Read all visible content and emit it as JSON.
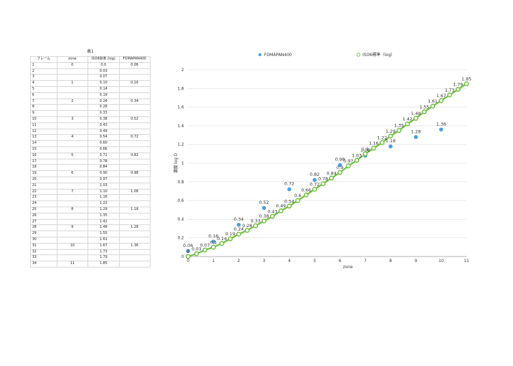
{
  "table": {
    "title": "表1",
    "headers": [
      "フレーム",
      "zone",
      "ISO6標準 (log)",
      "FOMAPAN400"
    ],
    "rows": [
      [
        "1",
        "0",
        "0.0",
        "0.06"
      ],
      [
        "2",
        "",
        "0.03",
        ""
      ],
      [
        "3",
        "",
        "0.07",
        ""
      ],
      [
        "4",
        "1",
        "0.10",
        "0.16"
      ],
      [
        "5",
        "",
        "0.14",
        ""
      ],
      [
        "6",
        "",
        "0.19",
        ""
      ],
      [
        "7",
        "2",
        "0.24",
        "0.34"
      ],
      [
        "8",
        "",
        "0.28",
        ""
      ],
      [
        "9",
        "",
        "0.33",
        ""
      ],
      [
        "10",
        "3",
        "0.38",
        "0.52"
      ],
      [
        "11",
        "",
        "0.43",
        ""
      ],
      [
        "12",
        "",
        "0.49",
        ""
      ],
      [
        "13",
        "4",
        "0.54",
        "0.72"
      ],
      [
        "14",
        "",
        "0.60",
        ""
      ],
      [
        "15",
        "",
        "0.66",
        ""
      ],
      [
        "16",
        "5",
        "0.72",
        "0.82"
      ],
      [
        "17",
        "",
        "0.78",
        ""
      ],
      [
        "18",
        "",
        "0.84",
        ""
      ],
      [
        "19",
        "6",
        "0.90",
        "0.98"
      ],
      [
        "20",
        "",
        "0.97",
        ""
      ],
      [
        "21",
        "",
        "1.03",
        ""
      ],
      [
        "22",
        "7",
        "1.10",
        "1.08"
      ],
      [
        "23",
        "",
        "1.16",
        ""
      ],
      [
        "24",
        "",
        "1.22",
        ""
      ],
      [
        "25",
        "8",
        "1.29",
        "1.18"
      ],
      [
        "26",
        "",
        "1.35",
        ""
      ],
      [
        "27",
        "",
        "1.42",
        ""
      ],
      [
        "28",
        "9",
        "1.48",
        "1.28"
      ],
      [
        "29",
        "",
        "1.55",
        ""
      ],
      [
        "30",
        "",
        "1.61",
        ""
      ],
      [
        "31",
        "10",
        "1.67",
        "1.36"
      ],
      [
        "32",
        "",
        "1.73",
        ""
      ],
      [
        "33",
        "",
        "1.79",
        ""
      ],
      [
        "34",
        "11",
        "1.85",
        ""
      ]
    ]
  },
  "chart_data": {
    "type": "scatter",
    "xlabel": "zone",
    "ylabel": "濃度 log D",
    "xlim": [
      0,
      11
    ],
    "ylim": [
      0,
      2
    ],
    "xticks": [
      0,
      1,
      2,
      3,
      4,
      5,
      6,
      7,
      8,
      9,
      10,
      11
    ],
    "yticks": [
      0,
      0.2,
      0.4,
      0.6,
      0.8,
      1,
      1.2,
      1.4,
      1.6,
      1.8,
      2
    ],
    "ytick_labels": [
      "0",
      "0.2",
      "0.4",
      "0.6",
      "0.8",
      "1",
      "1.2",
      "1.4",
      "1.6",
      "1.8",
      "2"
    ],
    "grid": true,
    "legend_position": "top",
    "series": [
      {
        "name": "FOMAPAN400",
        "color": "#4a9fe0",
        "style": "points",
        "x": [
          0,
          1,
          2,
          3,
          4,
          5,
          6,
          7,
          8,
          9,
          10
        ],
        "y": [
          0.06,
          0.16,
          0.34,
          0.52,
          0.72,
          0.82,
          0.98,
          1.08,
          1.18,
          1.28,
          1.36
        ],
        "labels": [
          "0.06",
          "0.16",
          "0.34",
          "0.52",
          "0.72",
          "0.82",
          "0.98",
          "1.08",
          "1.18",
          "1.28",
          "1.36"
        ]
      },
      {
        "name": "ISO6標準（log）",
        "color": "#6cbf3c",
        "style": "line-markers",
        "x": [
          0,
          0.333,
          0.667,
          1,
          1.333,
          1.667,
          2,
          2.333,
          2.667,
          3,
          3.333,
          3.667,
          4,
          4.333,
          4.667,
          5,
          5.333,
          5.667,
          6,
          6.333,
          6.667,
          7,
          7.333,
          7.667,
          8,
          8.333,
          8.667,
          9,
          9.333,
          9.667,
          10,
          10.333,
          10.667,
          11
        ],
        "y": [
          0,
          0.03,
          0.07,
          0.1,
          0.14,
          0.19,
          0.24,
          0.28,
          0.33,
          0.38,
          0.43,
          0.49,
          0.54,
          0.6,
          0.66,
          0.72,
          0.78,
          0.84,
          0.9,
          0.97,
          1.03,
          1.1,
          1.16,
          1.22,
          1.29,
          1.35,
          1.42,
          1.48,
          1.55,
          1.61,
          1.67,
          1.73,
          1.79,
          1.85
        ],
        "labels": [
          "0",
          "0.03",
          "0.07",
          "0.1",
          "0.14",
          "0.19",
          "0.24",
          "0.28",
          "0.33",
          "0.38",
          "0.43",
          "0.49",
          "0.54",
          "0.6",
          "0.66",
          "0.72",
          "0.78",
          "0.84",
          "0.9",
          "0.97",
          "1.03",
          "1.1",
          "1.16",
          "1.22",
          "1.29",
          "1.35",
          "1.42",
          "1.48",
          "1.55",
          "1.61",
          "1.67",
          "1.73",
          "1.79",
          "1.85"
        ]
      }
    ]
  }
}
